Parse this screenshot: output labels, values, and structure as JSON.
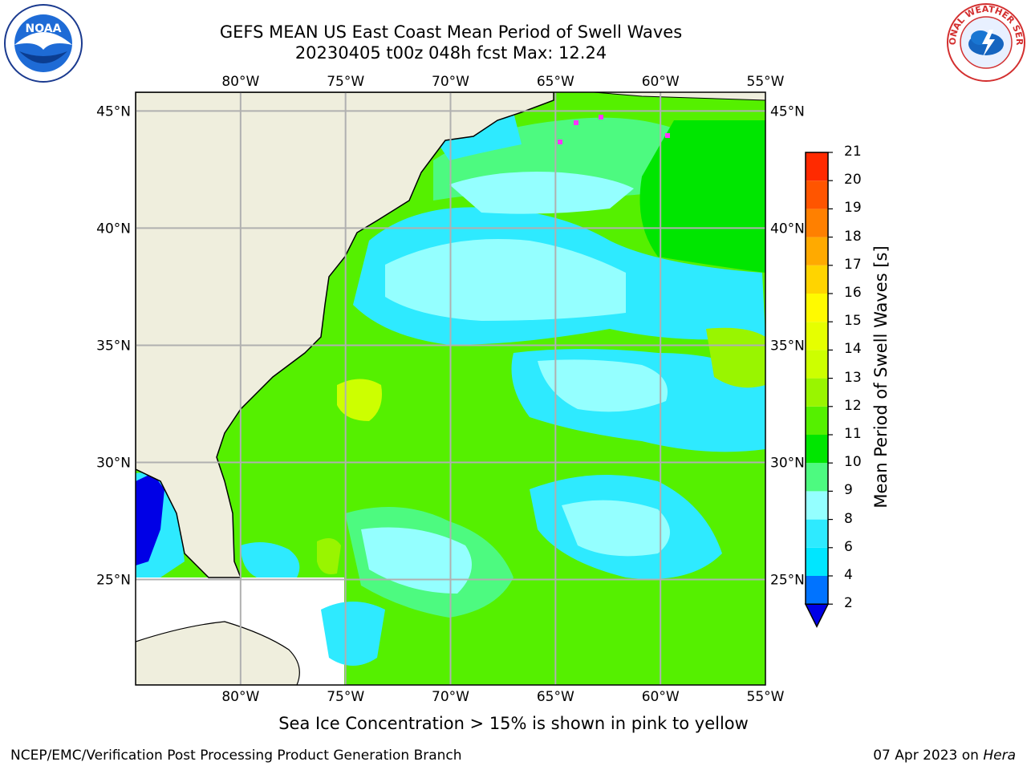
{
  "header": {
    "title_line1": "GEFS MEAN US East Coast Mean Period of Swell Waves",
    "title_line2": "20230405 t00z 048h fcst   Max: 12.24"
  },
  "logos": {
    "left": "NOAA",
    "right_ring": "NATIONAL WEATHER SERVICE"
  },
  "map": {
    "lon_ticks": [
      "80°W",
      "75°W",
      "70°W",
      "65°W",
      "60°W",
      "55°W"
    ],
    "lat_ticks": [
      "45°N",
      "40°N",
      "35°N",
      "30°N",
      "25°N"
    ],
    "lon_range": [
      -85,
      -55
    ],
    "lat_range": [
      20.5,
      45.8
    ],
    "land_color": "#efeedd",
    "grid_color": "#b0b0b0"
  },
  "colorbar": {
    "label": "Mean Period of Swell Waves [s]",
    "levels": [
      "2",
      "4",
      "6",
      "8",
      "9",
      "10",
      "11",
      "12",
      "13",
      "14",
      "15",
      "16",
      "17",
      "18",
      "19",
      "20",
      "21"
    ],
    "colors": [
      "#0073ff",
      "#00e6ff",
      "#2eeaff",
      "#94ffff",
      "#4dfa80",
      "#00e600",
      "#55f000",
      "#99f500",
      "#cdff00",
      "#e6ff00",
      "#fffa00",
      "#ffd400",
      "#ffaa00",
      "#ff8000",
      "#ff5500",
      "#ff2a00"
    ],
    "under_color": "#0000e6"
  },
  "footer": {
    "ice_note": "Sea Ice Concentration > 15% is shown in pink to yellow",
    "left": "NCEP/EMC/Verification Post Processing Product Generation Branch",
    "right_date": "07 Apr 2023 on ",
    "right_machine": "Hera"
  }
}
